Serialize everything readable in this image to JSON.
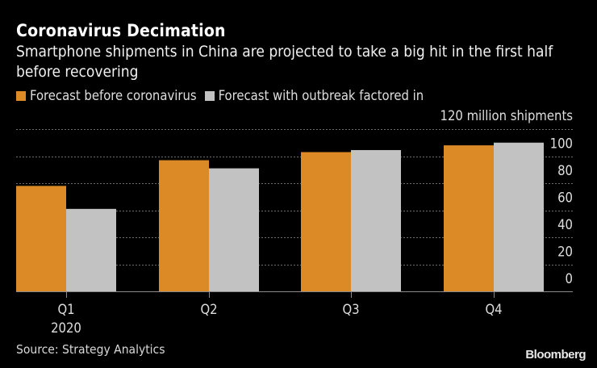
{
  "header": {
    "title": "Coronavirus Decimation",
    "subtitle": "Smartphone shipments in China are projected to take a big hit in the first half before recovering"
  },
  "footer": {
    "source": "Source: Strategy Analytics",
    "brand": "Bloomberg"
  },
  "colors": {
    "before": "#DB8A25",
    "after": "#C2C2C2",
    "grid": "#6e6e6e",
    "axis": "#8a8a8a",
    "text": "#dedede"
  },
  "chart_data": {
    "type": "bar",
    "title": "Coronavirus Decimation",
    "subtitle": "Smartphone shipments in China are projected to take a big hit in the first half before recovering",
    "categories": [
      "Q1",
      "Q2",
      "Q3",
      "Q4"
    ],
    "category_sublabels": [
      "2020",
      "",
      "",
      ""
    ],
    "series": [
      {
        "name": "Forecast before coronavirus",
        "color": "#DB8A25",
        "values": [
          78,
          97,
          103,
          108
        ]
      },
      {
        "name": "Forecast with outbreak factored in",
        "color": "#C2C2C2",
        "values": [
          61,
          91,
          104.5,
          110
        ]
      }
    ],
    "xlabel": "",
    "ylabel": "120 million shipments",
    "unit_label": "120 million shipments",
    "ylim": [
      0,
      120
    ],
    "yticks": [
      0,
      20,
      40,
      60,
      80,
      100,
      120
    ],
    "ytick_labels": [
      "0",
      "20",
      "40",
      "60",
      "80",
      "100"
    ],
    "grid": true,
    "grid_style": "dotted",
    "yaxis_side": "right",
    "legend_position": "top-left",
    "source": "Source: Strategy Analytics"
  }
}
